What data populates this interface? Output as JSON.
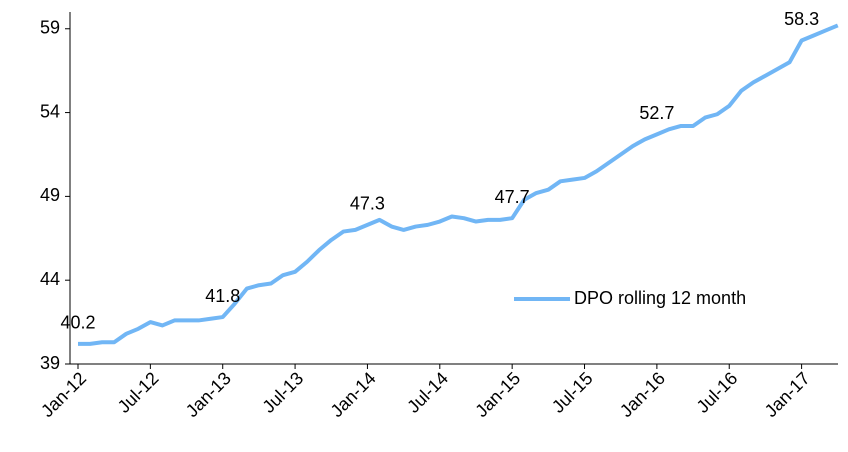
{
  "chart_data": {
    "type": "line",
    "categories": [
      "Jan-12",
      null,
      null,
      null,
      null,
      null,
      "Jul-12",
      null,
      null,
      null,
      null,
      null,
      "Jan-13",
      null,
      null,
      null,
      null,
      null,
      "Jul-13",
      null,
      null,
      null,
      null,
      null,
      "Jan-14",
      null,
      null,
      null,
      null,
      null,
      "Jul-14",
      null,
      null,
      null,
      null,
      null,
      "Jan-15",
      null,
      null,
      null,
      null,
      null,
      "Jul-15",
      null,
      null,
      null,
      null,
      null,
      "Jan-16",
      null,
      null,
      null,
      null,
      null,
      "Jul-16",
      null,
      null,
      null,
      null,
      null,
      "Jan-17",
      null,
      null,
      null
    ],
    "series": [
      {
        "name": "DPO rolling 12 month",
        "color": "#71b6f5",
        "values": [
          40.2,
          40.2,
          40.3,
          40.3,
          40.8,
          41.1,
          41.5,
          41.3,
          41.6,
          41.6,
          41.6,
          41.7,
          41.8,
          42.6,
          43.5,
          43.7,
          43.8,
          44.3,
          44.5,
          45.1,
          45.8,
          46.4,
          46.9,
          47.0,
          47.3,
          47.6,
          47.2,
          47.0,
          47.2,
          47.3,
          47.5,
          47.8,
          47.7,
          47.5,
          47.6,
          47.6,
          47.7,
          48.8,
          49.2,
          49.4,
          49.9,
          50.0,
          50.1,
          50.5,
          51.0,
          51.5,
          52.0,
          52.4,
          52.7,
          53.0,
          53.2,
          53.2,
          53.7,
          53.9,
          54.4,
          55.3,
          55.8,
          56.2,
          56.6,
          57.0,
          58.3,
          58.6,
          58.9,
          59.2
        ],
        "value_labels": [
          "40.2",
          null,
          null,
          null,
          null,
          null,
          null,
          null,
          null,
          null,
          null,
          null,
          "41.8",
          null,
          null,
          null,
          null,
          null,
          null,
          null,
          null,
          null,
          null,
          null,
          "47.3",
          null,
          null,
          null,
          null,
          null,
          null,
          null,
          null,
          null,
          null,
          null,
          "47.7",
          null,
          null,
          null,
          null,
          null,
          null,
          null,
          null,
          null,
          null,
          null,
          "52.7",
          null,
          null,
          null,
          null,
          null,
          null,
          null,
          null,
          null,
          null,
          null,
          "58.3",
          null,
          null,
          null
        ]
      }
    ],
    "ylim": [
      39,
      60
    ],
    "yticks": [
      39,
      44,
      49,
      54,
      59
    ],
    "legend": "lower right"
  }
}
